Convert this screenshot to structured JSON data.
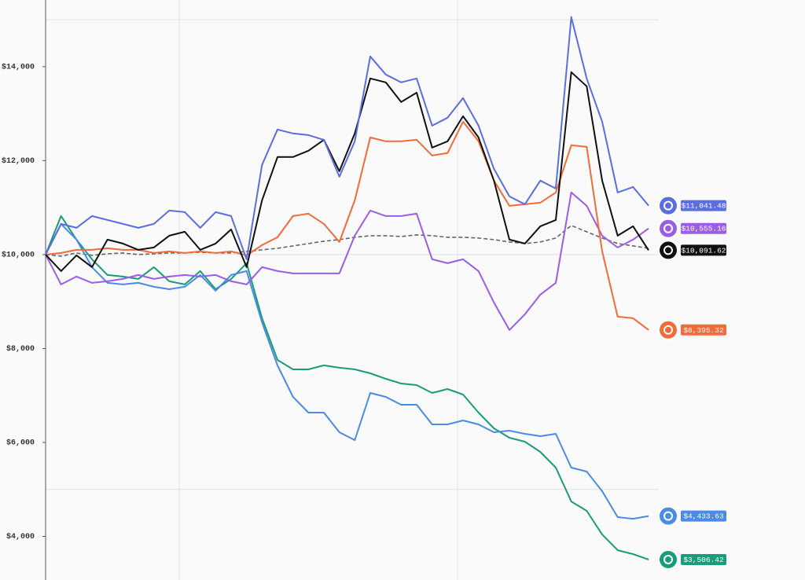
{
  "chart_data": {
    "type": "line",
    "ylim": [
      3071,
      15420
    ],
    "yticks": [
      {
        "value": 4000,
        "label": "$4,000"
      },
      {
        "value": 6000,
        "label": "$6,000"
      },
      {
        "value": 8000,
        "label": "$8,000"
      },
      {
        "value": 10000,
        "label": "$10,000"
      },
      {
        "value": 12000,
        "label": "$12,000"
      },
      {
        "value": 14000,
        "label": "$14,000"
      }
    ],
    "ygrid": [
      5000,
      10000,
      15000
    ],
    "series": [
      {
        "color": "#666666",
        "dash": true,
        "values": [
          10000,
          9967,
          10033,
          9983,
          10017,
          10033,
          10000,
          10017,
          10033,
          10033,
          10050,
          10033,
          10033,
          10067,
          10100,
          10134,
          10184,
          10234,
          10285,
          10318,
          10368,
          10402,
          10402,
          10385,
          10418,
          10402,
          10368,
          10368,
          10351,
          10318,
          10268,
          10234,
          10268,
          10351,
          10619,
          10485,
          10351,
          10234,
          10184,
          10134
        ]
      },
      {
        "color": "#1a9c7a",
        "values": [
          10000,
          10820,
          10318,
          9900,
          9565,
          9531,
          9481,
          9732,
          9431,
          9364,
          9648,
          9263,
          9481,
          9816,
          8644,
          7757,
          7556,
          7556,
          7640,
          7590,
          7556,
          7472,
          7355,
          7255,
          7221,
          7054,
          7137,
          7020,
          6635,
          6300,
          6100,
          6016,
          5798,
          5463,
          4743,
          4543,
          4040,
          3706,
          3622,
          3506.42
        ],
        "value_labels": [
          null,
          null,
          null,
          null,
          null,
          null,
          null,
          null,
          null,
          null,
          null,
          null,
          null,
          null,
          null,
          null,
          null,
          null,
          null,
          null,
          null,
          null,
          null,
          null,
          null,
          null,
          null,
          null,
          null,
          null,
          null,
          null,
          null,
          null,
          null,
          null,
          null,
          null,
          null,
          "$3,506.42"
        ]
      },
      {
        "color": "#4a8be8",
        "values": [
          10000,
          10653,
          10318,
          9732,
          9397,
          9364,
          9397,
          9314,
          9263,
          9314,
          9565,
          9230,
          9565,
          9648,
          8560,
          7639,
          6970,
          6635,
          6635,
          6217,
          6049,
          7053,
          6970,
          6802,
          6802,
          6384,
          6384,
          6468,
          6384,
          6217,
          6250,
          6183,
          6133,
          6183,
          5463,
          5380,
          4961,
          4409,
          4375,
          4433.63
        ],
        "value_labels": [
          null,
          null,
          null,
          null,
          null,
          null,
          null,
          null,
          null,
          null,
          null,
          null,
          null,
          null,
          null,
          null,
          null,
          null,
          null,
          null,
          null,
          null,
          null,
          null,
          null,
          null,
          null,
          null,
          null,
          null,
          null,
          null,
          null,
          null,
          null,
          null,
          null,
          null,
          null,
          "$4,433.63"
        ]
      },
      {
        "color": "#9b5de5",
        "values": [
          10000,
          9364,
          9531,
          9397,
          9431,
          9481,
          9565,
          9481,
          9531,
          9565,
          9531,
          9565,
          9431,
          9364,
          9732,
          9648,
          9598,
          9598,
          9598,
          9598,
          10402,
          10937,
          10820,
          10820,
          10870,
          9900,
          9816,
          9900,
          9648,
          8979,
          8393,
          8728,
          9146,
          9397,
          11322,
          11038,
          10402,
          10151,
          10318,
          10555.16
        ],
        "value_labels": [
          null,
          null,
          null,
          null,
          null,
          null,
          null,
          null,
          null,
          null,
          null,
          null,
          null,
          null,
          null,
          null,
          null,
          null,
          null,
          null,
          null,
          null,
          null,
          null,
          null,
          null,
          null,
          null,
          null,
          null,
          null,
          null,
          null,
          null,
          null,
          null,
          null,
          null,
          null,
          "$10,555.16"
        ]
      },
      {
        "color": "#f26b3a",
        "values": [
          10000,
          10033,
          10100,
          10100,
          10134,
          10100,
          10100,
          10033,
          10067,
          10033,
          10067,
          10033,
          10067,
          9983,
          10201,
          10368,
          10820,
          10871,
          10653,
          10268,
          11155,
          12494,
          12411,
          12411,
          12444,
          12109,
          12160,
          12829,
          12411,
          11574,
          11038,
          11071,
          11105,
          11322,
          12327,
          12293,
          10067,
          8678,
          8644,
          8395.32
        ],
        "value_labels": [
          null,
          null,
          null,
          null,
          null,
          null,
          null,
          null,
          null,
          null,
          null,
          null,
          null,
          null,
          null,
          null,
          null,
          null,
          null,
          null,
          null,
          null,
          null,
          null,
          null,
          null,
          null,
          null,
          null,
          null,
          null,
          null,
          null,
          null,
          null,
          null,
          null,
          null,
          null,
          "$8,395.32"
        ]
      },
      {
        "color": "#111111",
        "values": [
          10000,
          9648,
          9983,
          9732,
          10318,
          10234,
          10100,
          10151,
          10402,
          10485,
          10100,
          10234,
          10536,
          9732,
          11155,
          12076,
          12076,
          12210,
          12444,
          11774,
          12578,
          13750,
          13666,
          13248,
          13448,
          12277,
          12411,
          12946,
          12494,
          11574,
          10318,
          10234,
          10603,
          10737,
          13884,
          13582,
          11574,
          10402,
          10603,
          10091.62
        ],
        "value_labels": [
          null,
          null,
          null,
          null,
          null,
          null,
          null,
          null,
          null,
          null,
          null,
          null,
          null,
          null,
          null,
          null,
          null,
          null,
          null,
          null,
          null,
          null,
          null,
          null,
          null,
          null,
          null,
          null,
          null,
          null,
          null,
          null,
          null,
          null,
          null,
          null,
          null,
          null,
          null,
          "$10,091.62"
        ]
      },
      {
        "color": "#5b6ee1",
        "values": [
          10000,
          10653,
          10569,
          10820,
          10737,
          10653,
          10569,
          10653,
          10937,
          10904,
          10569,
          10904,
          10820,
          9900,
          11909,
          12662,
          12578,
          12544,
          12444,
          11657,
          12411,
          14218,
          13833,
          13666,
          13750,
          12745,
          12913,
          13331,
          12745,
          11825,
          11239,
          11071,
          11574,
          11406,
          15055,
          13750,
          12829,
          11322,
          11440,
          11041.48
        ],
        "value_labels": [
          null,
          null,
          null,
          null,
          null,
          null,
          null,
          null,
          null,
          null,
          null,
          null,
          null,
          null,
          null,
          null,
          null,
          null,
          null,
          null,
          null,
          null,
          null,
          null,
          null,
          null,
          null,
          null,
          null,
          null,
          null,
          null,
          null,
          null,
          null,
          null,
          null,
          null,
          null,
          "$11,041.48"
        ]
      }
    ]
  }
}
